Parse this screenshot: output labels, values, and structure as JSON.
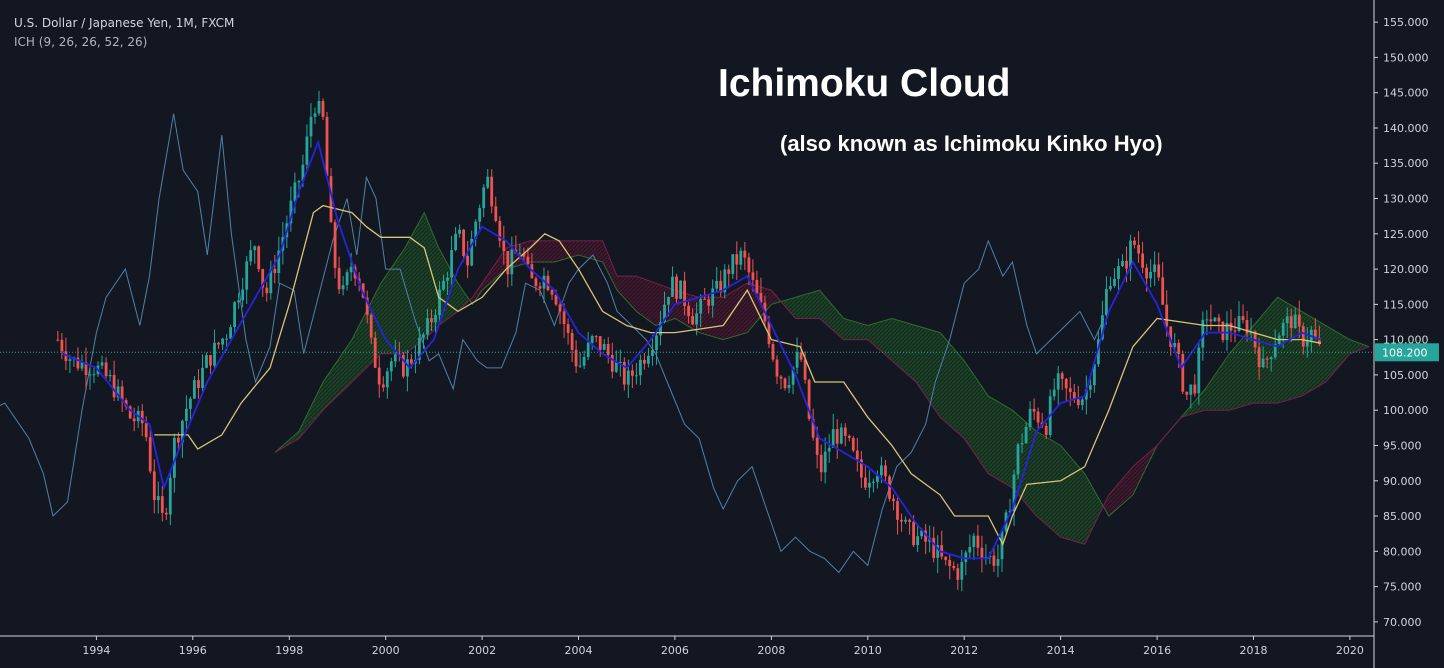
{
  "header": {
    "symbol": "U.S. Dollar / Japanese Yen, 1M, FXCM",
    "indicator": "ICH (9, 26, 26, 52, 26)"
  },
  "annotation": {
    "title": "Ichimoku Cloud",
    "subtitle": "(also known as Ichimoku Kinko Hyo)"
  },
  "colors": {
    "background": "#131722",
    "bull": "#26a69a",
    "bear": "#ef5350",
    "tenkan": "#2424e0",
    "kijun": "#d8c477",
    "chikou": "#4f81a8",
    "span_a": "#2e6b2e",
    "span_b": "#7a1e4c",
    "price_line": "#26a69a"
  },
  "chart_data": {
    "type": "candlestick",
    "x_axis": {
      "min": 1992.0,
      "max": 2020.5,
      "ticks": [
        "1994",
        "1996",
        "1998",
        "2000",
        "2002",
        "2004",
        "2006",
        "2008",
        "2010",
        "2012",
        "2014",
        "2016",
        "2018",
        "2020"
      ]
    },
    "y_axis": {
      "min": 68,
      "max": 157,
      "ticks": [
        "70.000",
        "75.000",
        "80.000",
        "85.000",
        "90.000",
        "95.000",
        "100.000",
        "105.000",
        "110.000",
        "115.000",
        "120.000",
        "125.000",
        "130.000",
        "135.000",
        "140.000",
        "145.000",
        "150.000",
        "155.000"
      ]
    },
    "last_price": "108.200",
    "close_path": [
      [
        1993.2,
        110
      ],
      [
        1993.5,
        107
      ],
      [
        1994.0,
        106
      ],
      [
        1994.3,
        104
      ],
      [
        1994.7,
        99
      ],
      [
        1995.0,
        98
      ],
      [
        1995.2,
        88
      ],
      [
        1995.4,
        84
      ],
      [
        1995.6,
        95
      ],
      [
        1995.9,
        101
      ],
      [
        1996.3,
        107
      ],
      [
        1996.7,
        111
      ],
      [
        1997.0,
        118
      ],
      [
        1997.3,
        124
      ],
      [
        1997.5,
        116
      ],
      [
        1997.8,
        123
      ],
      [
        1998.0,
        128
      ],
      [
        1998.3,
        135
      ],
      [
        1998.5,
        144
      ],
      [
        1998.7,
        141
      ],
      [
        1998.9,
        122
      ],
      [
        1999.1,
        116
      ],
      [
        1999.3,
        121
      ],
      [
        1999.5,
        118
      ],
      [
        1999.7,
        109
      ],
      [
        1999.9,
        104
      ],
      [
        2000.1,
        107
      ],
      [
        2000.4,
        106
      ],
      [
        2000.6,
        108
      ],
      [
        2000.9,
        112
      ],
      [
        2001.2,
        118
      ],
      [
        2001.5,
        125
      ],
      [
        2001.7,
        121
      ],
      [
        2001.9,
        128
      ],
      [
        2002.1,
        133
      ],
      [
        2002.3,
        128
      ],
      [
        2002.5,
        120
      ],
      [
        2002.8,
        123
      ],
      [
        2003.0,
        118
      ],
      [
        2003.3,
        119
      ],
      [
        2003.5,
        117
      ],
      [
        2003.8,
        110
      ],
      [
        2004.0,
        106
      ],
      [
        2004.3,
        110
      ],
      [
        2004.5,
        109
      ],
      [
        2004.8,
        106
      ],
      [
        2005.0,
        104
      ],
      [
        2005.3,
        107
      ],
      [
        2005.6,
        111
      ],
      [
        2005.9,
        118
      ],
      [
        2006.1,
        117
      ],
      [
        2006.4,
        113
      ],
      [
        2006.7,
        116
      ],
      [
        2006.9,
        117
      ],
      [
        2007.1,
        120
      ],
      [
        2007.4,
        122
      ],
      [
        2007.6,
        118
      ],
      [
        2007.9,
        112
      ],
      [
        2008.1,
        106
      ],
      [
        2008.3,
        104
      ],
      [
        2008.6,
        108
      ],
      [
        2008.8,
        98
      ],
      [
        2009.0,
        91
      ],
      [
        2009.3,
        97
      ],
      [
        2009.6,
        95
      ],
      [
        2009.9,
        90
      ],
      [
        2010.2,
        92
      ],
      [
        2010.5,
        88
      ],
      [
        2010.8,
        83
      ],
      [
        2011.0,
        82
      ],
      [
        2011.3,
        81
      ],
      [
        2011.6,
        78
      ],
      [
        2011.9,
        77
      ],
      [
        2012.2,
        82
      ],
      [
        2012.5,
        79
      ],
      [
        2012.7,
        79
      ],
      [
        2012.9,
        85
      ],
      [
        2013.1,
        94
      ],
      [
        2013.4,
        100
      ],
      [
        2013.7,
        98
      ],
      [
        2013.9,
        104
      ],
      [
        2014.2,
        102
      ],
      [
        2014.5,
        102
      ],
      [
        2014.8,
        110
      ],
      [
        2015.0,
        119
      ],
      [
        2015.3,
        120
      ],
      [
        2015.5,
        124
      ],
      [
        2015.8,
        120
      ],
      [
        2016.0,
        119
      ],
      [
        2016.2,
        112
      ],
      [
        2016.4,
        108
      ],
      [
        2016.6,
        102
      ],
      [
        2016.8,
        104
      ],
      [
        2017.0,
        114
      ],
      [
        2017.3,
        111
      ],
      [
        2017.6,
        112
      ],
      [
        2017.9,
        112
      ],
      [
        2018.2,
        106
      ],
      [
        2018.5,
        111
      ],
      [
        2018.8,
        113
      ],
      [
        2019.0,
        110
      ],
      [
        2019.2,
        111
      ],
      [
        2019.4,
        108
      ]
    ],
    "tenkan": [
      [
        1993.3,
        108
      ],
      [
        1994.0,
        106
      ],
      [
        1994.7,
        100
      ],
      [
        1995.1,
        98
      ],
      [
        1995.4,
        89
      ],
      [
        1995.8,
        96
      ],
      [
        1996.3,
        104
      ],
      [
        1996.8,
        110
      ],
      [
        1997.3,
        116
      ],
      [
        1997.8,
        122
      ],
      [
        1998.2,
        131
      ],
      [
        1998.6,
        138
      ],
      [
        1999.0,
        127
      ],
      [
        1999.5,
        117
      ],
      [
        2000.0,
        110
      ],
      [
        2000.5,
        106
      ],
      [
        2001.0,
        110
      ],
      [
        2001.5,
        120
      ],
      [
        2002.0,
        126
      ],
      [
        2002.5,
        124
      ],
      [
        2003.0,
        120
      ],
      [
        2003.5,
        117
      ],
      [
        2004.0,
        111
      ],
      [
        2004.5,
        108
      ],
      [
        2005.0,
        106
      ],
      [
        2005.5,
        110
      ],
      [
        2006.0,
        115
      ],
      [
        2006.5,
        116
      ],
      [
        2007.0,
        117
      ],
      [
        2007.5,
        119
      ],
      [
        2008.0,
        112
      ],
      [
        2008.5,
        105
      ],
      [
        2009.0,
        96
      ],
      [
        2009.5,
        94
      ],
      [
        2010.0,
        92
      ],
      [
        2010.5,
        89
      ],
      [
        2011.0,
        84
      ],
      [
        2011.5,
        80
      ],
      [
        2012.0,
        79
      ],
      [
        2012.5,
        79
      ],
      [
        2013.0,
        86
      ],
      [
        2013.5,
        97
      ],
      [
        2014.0,
        101
      ],
      [
        2014.5,
        102
      ],
      [
        2015.0,
        114
      ],
      [
        2015.5,
        121
      ],
      [
        2016.0,
        115
      ],
      [
        2016.5,
        106
      ],
      [
        2017.0,
        111
      ],
      [
        2017.5,
        111
      ],
      [
        2018.0,
        110
      ],
      [
        2018.5,
        109
      ],
      [
        2019.0,
        111
      ],
      [
        2019.4,
        110
      ]
    ],
    "kijun": [
      [
        1995.2,
        96.5
      ],
      [
        1995.9,
        96.5
      ],
      [
        1996.1,
        94.5
      ],
      [
        1996.6,
        96.5
      ],
      [
        1997.0,
        101
      ],
      [
        1997.6,
        106
      ],
      [
        1998.0,
        115
      ],
      [
        1998.5,
        128
      ],
      [
        1998.7,
        129
      ],
      [
        1999.3,
        128
      ],
      [
        1999.6,
        126
      ],
      [
        1999.9,
        124.5
      ],
      [
        2000.5,
        124.5
      ],
      [
        2000.8,
        123
      ],
      [
        2001.1,
        116
      ],
      [
        2001.5,
        114
      ],
      [
        2002.0,
        116
      ],
      [
        2002.5,
        120
      ],
      [
        2003.0,
        123
      ],
      [
        2003.3,
        125
      ],
      [
        2003.6,
        124
      ],
      [
        2004.0,
        120
      ],
      [
        2004.5,
        114
      ],
      [
        2005.0,
        112
      ],
      [
        2005.5,
        111
      ],
      [
        2006.0,
        111
      ],
      [
        2006.5,
        111.5
      ],
      [
        2007.0,
        112
      ],
      [
        2007.5,
        117
      ],
      [
        2008.0,
        110
      ],
      [
        2008.6,
        109
      ],
      [
        2008.9,
        104
      ],
      [
        2009.5,
        104
      ],
      [
        2010.0,
        99
      ],
      [
        2010.5,
        95
      ],
      [
        2010.9,
        91
      ],
      [
        2011.5,
        88
      ],
      [
        2011.8,
        85
      ],
      [
        2012.5,
        85
      ],
      [
        2012.8,
        81
      ],
      [
        2013.0,
        85
      ],
      [
        2013.3,
        89.5
      ],
      [
        2014.0,
        90
      ],
      [
        2014.5,
        92
      ],
      [
        2015.0,
        100
      ],
      [
        2015.5,
        109
      ],
      [
        2016.0,
        113
      ],
      [
        2016.5,
        112.5
      ],
      [
        2017.0,
        112
      ],
      [
        2017.5,
        112
      ],
      [
        2018.0,
        111
      ],
      [
        2018.5,
        110
      ],
      [
        2019.0,
        110
      ],
      [
        2019.4,
        109.5
      ]
    ],
    "chikou": [
      [
        1991.2,
        104
      ],
      [
        1991.5,
        110
      ],
      [
        1991.8,
        100
      ],
      [
        1992.1,
        101
      ],
      [
        1992.3,
        99
      ],
      [
        1992.6,
        96
      ],
      [
        1992.9,
        91
      ],
      [
        1993.1,
        85
      ],
      [
        1993.4,
        87
      ],
      [
        1993.7,
        100
      ],
      [
        1994.0,
        111
      ],
      [
        1994.2,
        116
      ],
      [
        1994.6,
        120
      ],
      [
        1994.9,
        112
      ],
      [
        1995.1,
        119
      ],
      [
        1995.3,
        130
      ],
      [
        1995.6,
        142
      ],
      [
        1995.8,
        134
      ],
      [
        1996.1,
        131
      ],
      [
        1996.3,
        122
      ],
      [
        1996.6,
        139
      ],
      [
        1996.8,
        125
      ],
      [
        1997.1,
        110
      ],
      [
        1997.3,
        104
      ],
      [
        1997.6,
        109
      ],
      [
        1997.8,
        118
      ],
      [
        1998.1,
        117
      ],
      [
        1998.3,
        108
      ],
      [
        1998.6,
        116
      ],
      [
        1998.9,
        124
      ],
      [
        1999.2,
        130
      ],
      [
        1999.4,
        122
      ],
      [
        1999.6,
        133
      ],
      [
        1999.8,
        130
      ],
      [
        2000.0,
        120
      ],
      [
        2000.3,
        120
      ],
      [
        2000.6,
        113
      ],
      [
        2000.9,
        107
      ],
      [
        2001.1,
        108
      ],
      [
        2001.4,
        103
      ],
      [
        2001.6,
        110
      ],
      [
        2001.9,
        107
      ],
      [
        2002.1,
        106
      ],
      [
        2002.4,
        106
      ],
      [
        2002.7,
        111
      ],
      [
        2002.9,
        118
      ],
      [
        2003.2,
        117
      ],
      [
        2003.5,
        112
      ],
      [
        2003.8,
        118
      ],
      [
        2004.0,
        120
      ],
      [
        2004.3,
        122
      ],
      [
        2004.6,
        118
      ],
      [
        2004.8,
        114
      ],
      [
        2005.1,
        112
      ],
      [
        2005.4,
        110
      ],
      [
        2005.6,
        108
      ],
      [
        2005.9,
        103
      ],
      [
        2006.2,
        98
      ],
      [
        2006.5,
        96
      ],
      [
        2006.8,
        89
      ],
      [
        2007.0,
        86
      ],
      [
        2007.3,
        90
      ],
      [
        2007.6,
        92
      ],
      [
        2007.9,
        86
      ],
      [
        2008.2,
        80
      ],
      [
        2008.5,
        82
      ],
      [
        2008.8,
        80
      ],
      [
        2009.1,
        79
      ],
      [
        2009.4,
        77
      ],
      [
        2009.7,
        80
      ],
      [
        2010.0,
        78
      ],
      [
        2010.3,
        86
      ],
      [
        2010.6,
        92
      ],
      [
        2010.9,
        94
      ],
      [
        2011.2,
        98
      ],
      [
        2011.4,
        104
      ],
      [
        2011.7,
        110
      ],
      [
        2012.0,
        118
      ],
      [
        2012.3,
        120
      ],
      [
        2012.5,
        124
      ],
      [
        2012.8,
        119
      ],
      [
        2013.0,
        121
      ],
      [
        2013.3,
        112
      ],
      [
        2013.5,
        108
      ],
      [
        2013.8,
        110
      ],
      [
        2014.1,
        112
      ],
      [
        2014.4,
        114
      ],
      [
        2014.7,
        110
      ],
      [
        2014.9,
        113
      ]
    ],
    "span_a": [
      [
        1997.7,
        94
      ],
      [
        1998.2,
        97
      ],
      [
        1998.7,
        104
      ],
      [
        1999.3,
        110
      ],
      [
        1999.9,
        118
      ],
      [
        2000.4,
        123
      ],
      [
        2000.8,
        128
      ],
      [
        2001.1,
        123
      ],
      [
        2001.5,
        118
      ],
      [
        2001.8,
        115
      ],
      [
        2002.0,
        117
      ],
      [
        2002.5,
        120
      ],
      [
        2003.0,
        121
      ],
      [
        2003.5,
        121
      ],
      [
        2004.0,
        122
      ],
      [
        2004.5,
        121
      ],
      [
        2004.8,
        117
      ],
      [
        2005.2,
        114
      ],
      [
        2005.6,
        112
      ],
      [
        2006.0,
        113
      ],
      [
        2006.5,
        111
      ],
      [
        2007.0,
        110
      ],
      [
        2007.5,
        111
      ],
      [
        2008.0,
        115
      ],
      [
        2008.5,
        116
      ],
      [
        2009.0,
        117
      ],
      [
        2009.5,
        113
      ],
      [
        2010.0,
        112
      ],
      [
        2010.5,
        113
      ],
      [
        2011.0,
        112
      ],
      [
        2011.5,
        111
      ],
      [
        2012.0,
        107
      ],
      [
        2012.5,
        102
      ],
      [
        2013.0,
        100
      ],
      [
        2013.5,
        97
      ],
      [
        2014.0,
        95
      ],
      [
        2014.5,
        91
      ],
      [
        2015.0,
        85
      ],
      [
        2015.5,
        88
      ],
      [
        2016.0,
        95
      ],
      [
        2016.5,
        99
      ],
      [
        2017.0,
        103
      ],
      [
        2017.5,
        108
      ],
      [
        2018.0,
        112
      ],
      [
        2018.5,
        116
      ],
      [
        2019.0,
        114
      ],
      [
        2019.5,
        112
      ],
      [
        2020.0,
        110
      ],
      [
        2020.4,
        109
      ]
    ],
    "span_b": [
      [
        1997.7,
        94
      ],
      [
        1998.2,
        96
      ],
      [
        1998.7,
        100
      ],
      [
        1999.3,
        104
      ],
      [
        1999.9,
        108
      ],
      [
        2000.4,
        108
      ],
      [
        2000.8,
        110
      ],
      [
        2001.1,
        112
      ],
      [
        2001.5,
        114
      ],
      [
        2001.8,
        116
      ],
      [
        2002.0,
        118
      ],
      [
        2002.5,
        123
      ],
      [
        2003.0,
        124
      ],
      [
        2003.5,
        124
      ],
      [
        2004.0,
        124
      ],
      [
        2004.5,
        124
      ],
      [
        2004.8,
        119
      ],
      [
        2005.2,
        119
      ],
      [
        2005.6,
        118
      ],
      [
        2006.0,
        117
      ],
      [
        2006.5,
        116
      ],
      [
        2007.0,
        116
      ],
      [
        2007.5,
        118
      ],
      [
        2008.0,
        117
      ],
      [
        2008.5,
        113
      ],
      [
        2009.0,
        113
      ],
      [
        2009.5,
        110
      ],
      [
        2010.0,
        110
      ],
      [
        2010.5,
        107
      ],
      [
        2011.0,
        104
      ],
      [
        2011.5,
        99
      ],
      [
        2012.0,
        96
      ],
      [
        2012.5,
        91
      ],
      [
        2013.0,
        89
      ],
      [
        2013.5,
        85
      ],
      [
        2014.0,
        82
      ],
      [
        2014.5,
        81
      ],
      [
        2015.0,
        88
      ],
      [
        2015.5,
        92
      ],
      [
        2016.0,
        95
      ],
      [
        2016.5,
        99
      ],
      [
        2017.0,
        100
      ],
      [
        2017.5,
        100
      ],
      [
        2018.0,
        101
      ],
      [
        2018.5,
        101
      ],
      [
        2019.0,
        102
      ],
      [
        2019.5,
        104
      ],
      [
        2020.0,
        108
      ],
      [
        2020.4,
        109
      ]
    ]
  }
}
